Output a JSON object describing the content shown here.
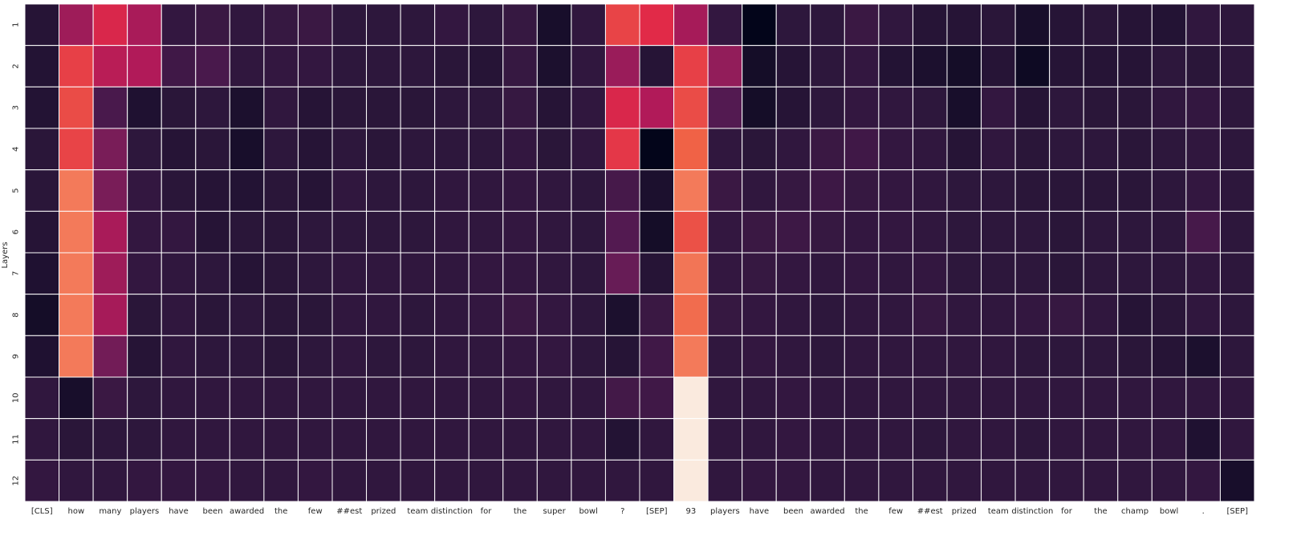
{
  "chart_data": {
    "type": "heatmap",
    "title": "",
    "xlabel": "",
    "ylabel": "Layers",
    "x_tokens": [
      "[CLS]",
      "how",
      "many",
      "players",
      "have",
      "been",
      "awarded",
      "the",
      "few",
      "##est",
      "prized",
      "team",
      "distinction",
      "for",
      "the",
      "super",
      "bowl",
      "?",
      "[SEP]",
      "93",
      "players",
      "have",
      "been",
      "awarded",
      "the",
      "few",
      "##est",
      "prized",
      "team",
      "distinction",
      "for",
      "the",
      "champ",
      "bowl",
      ".",
      "[SEP]"
    ],
    "y_labels": [
      "1",
      "2",
      "3",
      "4",
      "5",
      "6",
      "7",
      "8",
      "9",
      "10",
      "11",
      "12"
    ],
    "colormap": "rocket",
    "grid": true,
    "values": [
      [
        0.1,
        0.45,
        0.6,
        0.48,
        0.14,
        0.16,
        0.13,
        0.15,
        0.16,
        0.12,
        0.12,
        0.12,
        0.14,
        0.12,
        0.15,
        0.06,
        0.13,
        0.68,
        0.62,
        0.47,
        0.14,
        0.0,
        0.12,
        0.12,
        0.16,
        0.13,
        0.1,
        0.1,
        0.11,
        0.06,
        0.1,
        0.11,
        0.1,
        0.09,
        0.13,
        0.12
      ],
      [
        0.09,
        0.67,
        0.52,
        0.5,
        0.18,
        0.21,
        0.13,
        0.14,
        0.14,
        0.12,
        0.12,
        0.12,
        0.11,
        0.1,
        0.15,
        0.07,
        0.13,
        0.44,
        0.1,
        0.67,
        0.42,
        0.05,
        0.1,
        0.12,
        0.14,
        0.09,
        0.07,
        0.05,
        0.1,
        0.03,
        0.1,
        0.1,
        0.1,
        0.12,
        0.11,
        0.12
      ],
      [
        0.09,
        0.7,
        0.21,
        0.08,
        0.11,
        0.12,
        0.07,
        0.13,
        0.1,
        0.11,
        0.11,
        0.11,
        0.12,
        0.12,
        0.15,
        0.1,
        0.13,
        0.6,
        0.5,
        0.7,
        0.24,
        0.05,
        0.1,
        0.12,
        0.14,
        0.13,
        0.12,
        0.06,
        0.14,
        0.1,
        0.12,
        0.11,
        0.11,
        0.13,
        0.14,
        0.12
      ],
      [
        0.11,
        0.68,
        0.35,
        0.12,
        0.1,
        0.11,
        0.06,
        0.12,
        0.1,
        0.12,
        0.11,
        0.12,
        0.12,
        0.12,
        0.14,
        0.11,
        0.13,
        0.65,
        0.0,
        0.75,
        0.13,
        0.11,
        0.13,
        0.16,
        0.18,
        0.14,
        0.13,
        0.1,
        0.13,
        0.11,
        0.12,
        0.12,
        0.11,
        0.12,
        0.13,
        0.12
      ],
      [
        0.11,
        0.8,
        0.35,
        0.14,
        0.11,
        0.1,
        0.09,
        0.11,
        0.1,
        0.13,
        0.12,
        0.12,
        0.13,
        0.13,
        0.14,
        0.13,
        0.12,
        0.2,
        0.07,
        0.8,
        0.16,
        0.13,
        0.15,
        0.17,
        0.15,
        0.14,
        0.13,
        0.12,
        0.12,
        0.11,
        0.11,
        0.11,
        0.11,
        0.12,
        0.14,
        0.12
      ],
      [
        0.1,
        0.8,
        0.48,
        0.14,
        0.14,
        0.1,
        0.11,
        0.11,
        0.12,
        0.12,
        0.12,
        0.12,
        0.13,
        0.13,
        0.14,
        0.13,
        0.12,
        0.24,
        0.05,
        0.71,
        0.14,
        0.16,
        0.17,
        0.15,
        0.14,
        0.14,
        0.13,
        0.12,
        0.12,
        0.12,
        0.11,
        0.12,
        0.12,
        0.12,
        0.2,
        0.12
      ],
      [
        0.08,
        0.8,
        0.45,
        0.14,
        0.13,
        0.12,
        0.1,
        0.11,
        0.12,
        0.13,
        0.13,
        0.13,
        0.13,
        0.14,
        0.14,
        0.13,
        0.12,
        0.3,
        0.1,
        0.79,
        0.14,
        0.15,
        0.14,
        0.13,
        0.14,
        0.13,
        0.14,
        0.12,
        0.12,
        0.12,
        0.11,
        0.12,
        0.12,
        0.12,
        0.13,
        0.12
      ],
      [
        0.05,
        0.8,
        0.47,
        0.11,
        0.13,
        0.11,
        0.12,
        0.11,
        0.11,
        0.13,
        0.13,
        0.12,
        0.13,
        0.14,
        0.16,
        0.14,
        0.12,
        0.07,
        0.16,
        0.77,
        0.15,
        0.14,
        0.13,
        0.12,
        0.13,
        0.13,
        0.15,
        0.13,
        0.13,
        0.14,
        0.15,
        0.13,
        0.1,
        0.11,
        0.13,
        0.12
      ],
      [
        0.08,
        0.8,
        0.33,
        0.1,
        0.13,
        0.12,
        0.12,
        0.11,
        0.12,
        0.13,
        0.12,
        0.12,
        0.13,
        0.13,
        0.14,
        0.14,
        0.12,
        0.1,
        0.18,
        0.8,
        0.13,
        0.14,
        0.13,
        0.12,
        0.13,
        0.13,
        0.13,
        0.13,
        0.13,
        0.12,
        0.12,
        0.12,
        0.11,
        0.1,
        0.07,
        0.12
      ],
      [
        0.13,
        0.06,
        0.16,
        0.12,
        0.13,
        0.13,
        0.13,
        0.13,
        0.13,
        0.13,
        0.13,
        0.13,
        0.13,
        0.13,
        0.14,
        0.13,
        0.13,
        0.19,
        0.18,
        1.0,
        0.13,
        0.13,
        0.14,
        0.13,
        0.13,
        0.13,
        0.13,
        0.13,
        0.13,
        0.13,
        0.13,
        0.13,
        0.13,
        0.13,
        0.13,
        0.13
      ],
      [
        0.13,
        0.11,
        0.12,
        0.12,
        0.13,
        0.13,
        0.13,
        0.13,
        0.13,
        0.13,
        0.13,
        0.13,
        0.13,
        0.13,
        0.13,
        0.13,
        0.13,
        0.09,
        0.13,
        1.0,
        0.13,
        0.13,
        0.14,
        0.13,
        0.13,
        0.13,
        0.12,
        0.13,
        0.13,
        0.12,
        0.13,
        0.13,
        0.13,
        0.13,
        0.08,
        0.13
      ],
      [
        0.14,
        0.13,
        0.13,
        0.14,
        0.14,
        0.14,
        0.13,
        0.13,
        0.14,
        0.13,
        0.13,
        0.13,
        0.13,
        0.13,
        0.13,
        0.13,
        0.13,
        0.13,
        0.13,
        1.0,
        0.13,
        0.14,
        0.14,
        0.13,
        0.13,
        0.13,
        0.13,
        0.13,
        0.13,
        0.13,
        0.13,
        0.13,
        0.13,
        0.13,
        0.14,
        0.06
      ]
    ]
  }
}
